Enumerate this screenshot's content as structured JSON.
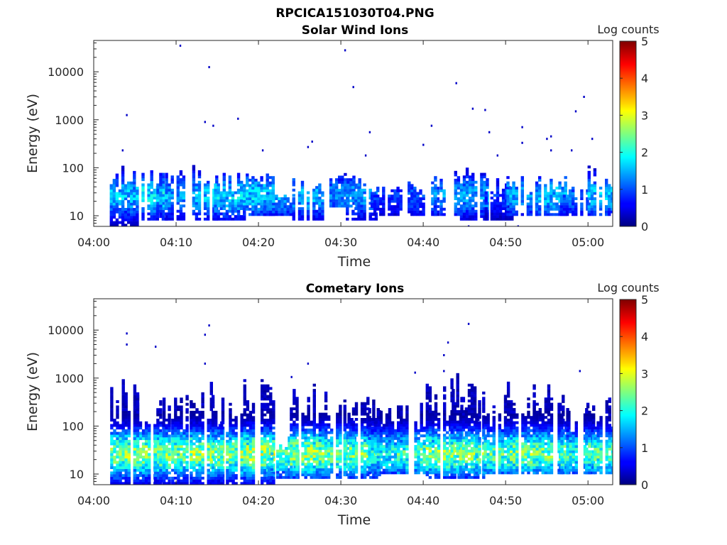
{
  "figure": {
    "title": "RPCICA151030T04.PNG"
  },
  "colorbar": {
    "label": "Log counts",
    "min": 0,
    "max": 5,
    "ticks": [
      "0",
      "1",
      "2",
      "3",
      "4",
      "5"
    ],
    "colormap": "jet"
  },
  "chart_data": [
    {
      "type": "heatmap",
      "title": "Solar Wind Ions",
      "xlabel": "Time",
      "ylabel": "Energy (eV)",
      "yscale": "log",
      "ylim": [
        6,
        45000
      ],
      "xlim": [
        "04:00",
        "05:03"
      ],
      "xticks": [
        "04:00",
        "04:10",
        "04:20",
        "04:30",
        "04:40",
        "04:50",
        "05:00"
      ],
      "yticks": [
        "10",
        "100",
        "1000",
        "10000"
      ],
      "grid": false,
      "bursts": [
        {
          "t": "04:03.5",
          "emin": 6,
          "emax": 110,
          "peak": 1.8
        },
        {
          "t": "04:07.0",
          "emin": 8,
          "emax": 90,
          "peak": 2.0
        },
        {
          "t": "04:09.5",
          "emin": 8,
          "emax": 90,
          "peak": 1.6
        },
        {
          "t": "04:13.5",
          "emin": 8,
          "emax": 110,
          "peak": 1.8
        },
        {
          "t": "04:16.5",
          "emin": 8,
          "emax": 80,
          "peak": 1.9
        },
        {
          "t": "04:20.0",
          "emin": 10,
          "emax": 80,
          "peak": 1.9
        },
        {
          "t": "04:22.5",
          "emin": 10,
          "emax": 30,
          "peak": 1.7
        },
        {
          "t": "04:26.0",
          "emin": 8,
          "emax": 60,
          "peak": 1.7
        },
        {
          "t": "04:30.5",
          "emin": 15,
          "emax": 80,
          "peak": 1.5
        },
        {
          "t": "04:32.5",
          "emin": 8,
          "emax": 60,
          "peak": 1.6
        },
        {
          "t": "04:35.5",
          "emin": 10,
          "emax": 40,
          "peak": 1.0
        },
        {
          "t": "04:40.0",
          "emin": 10,
          "emax": 50,
          "peak": 1.2
        },
        {
          "t": "04:42.5",
          "emin": 10,
          "emax": 110,
          "peak": 1.6
        },
        {
          "t": "04:46.0",
          "emin": 8,
          "emax": 120,
          "peak": 1.6
        },
        {
          "t": "04:49.0",
          "emin": 8,
          "emax": 60,
          "peak": 1.0
        },
        {
          "t": "04:52.0",
          "emin": 10,
          "emax": 70,
          "peak": 1.6
        },
        {
          "t": "04:55.5",
          "emin": 10,
          "emax": 60,
          "peak": 1.8
        },
        {
          "t": "04:58.5",
          "emin": 10,
          "emax": 45,
          "peak": 1.3
        },
        {
          "t": "05:01.5",
          "emin": 10,
          "emax": 100,
          "peak": 1.8
        }
      ],
      "sparse_points": [
        {
          "t": "04:10.5",
          "e": 35000
        },
        {
          "t": "04:14.0",
          "e": 12500
        },
        {
          "t": "04:30.5",
          "e": 28000
        },
        {
          "t": "04:31.5",
          "e": 4800
        },
        {
          "t": "04:44.0",
          "e": 5800
        },
        {
          "t": "04:46.0",
          "e": 1700
        },
        {
          "t": "04:47.5",
          "e": 1600
        },
        {
          "t": "04:58.5",
          "e": 1500
        },
        {
          "t": "04:59.5",
          "e": 3000
        },
        {
          "t": "04:04.0",
          "e": 1250
        },
        {
          "t": "04:17.5",
          "e": 1050
        },
        {
          "t": "04:13.5",
          "e": 900
        },
        {
          "t": "04:14.5",
          "e": 750
        },
        {
          "t": "04:41.0",
          "e": 750
        },
        {
          "t": "04:52.0",
          "e": 700
        },
        {
          "t": "04:33.5",
          "e": 550
        },
        {
          "t": "04:48.0",
          "e": 550
        },
        {
          "t": "04:55.5",
          "e": 450
        },
        {
          "t": "04:55.0",
          "e": 400
        },
        {
          "t": "05:00.5",
          "e": 400
        },
        {
          "t": "04:26.5",
          "e": 350
        },
        {
          "t": "04:52.0",
          "e": 330
        },
        {
          "t": "04:40.0",
          "e": 300
        },
        {
          "t": "04:26.0",
          "e": 270
        },
        {
          "t": "04:55.5",
          "e": 230
        },
        {
          "t": "04:58.0",
          "e": 230
        },
        {
          "t": "04:20.5",
          "e": 230
        },
        {
          "t": "04:03.5",
          "e": 230
        },
        {
          "t": "04:49.0",
          "e": 180
        },
        {
          "t": "04:33.0",
          "e": 180
        },
        {
          "t": "04:45.5",
          "e": 6
        },
        {
          "t": "04:51.5",
          "e": 6
        }
      ]
    },
    {
      "type": "heatmap",
      "title": "Cometary Ions",
      "xlabel": "Time",
      "ylabel": "Energy (eV)",
      "yscale": "log",
      "ylim": [
        6,
        45000
      ],
      "xlim": [
        "04:00",
        "05:03"
      ],
      "xticks": [
        "04:00",
        "04:10",
        "04:20",
        "04:30",
        "04:40",
        "04:50",
        "05:00"
      ],
      "yticks": [
        "10",
        "100",
        "1000",
        "10000"
      ],
      "grid": false,
      "bursts": [
        {
          "t": "04:03.5",
          "emin": 6,
          "emax": 900,
          "peak": 2.9
        },
        {
          "t": "04:07.0",
          "emin": 6,
          "emax": 500,
          "peak": 2.9
        },
        {
          "t": "04:09.5",
          "emin": 6,
          "emax": 500,
          "peak": 2.8
        },
        {
          "t": "04:13.5",
          "emin": 6,
          "emax": 1000,
          "peak": 3.0
        },
        {
          "t": "04:16.5",
          "emin": 6,
          "emax": 500,
          "peak": 2.8
        },
        {
          "t": "04:20.0",
          "emin": 6,
          "emax": 1200,
          "peak": 3.1
        },
        {
          "t": "04:23.0",
          "emin": 8,
          "emax": 60,
          "peak": 2.6
        },
        {
          "t": "04:26.0",
          "emin": 8,
          "emax": 800,
          "peak": 3.0
        },
        {
          "t": "04:29.5",
          "emin": 8,
          "emax": 400,
          "peak": 2.8
        },
        {
          "t": "04:32.5",
          "emin": 8,
          "emax": 600,
          "peak": 2.8
        },
        {
          "t": "04:35.5",
          "emin": 10,
          "emax": 300,
          "peak": 2.2
        },
        {
          "t": "04:39.0",
          "emin": 10,
          "emax": 400,
          "peak": 2.6
        },
        {
          "t": "04:42.5",
          "emin": 8,
          "emax": 900,
          "peak": 2.9
        },
        {
          "t": "04:45.5",
          "emin": 8,
          "emax": 1300,
          "peak": 2.8
        },
        {
          "t": "04:48.5",
          "emin": 10,
          "emax": 400,
          "peak": 2.6
        },
        {
          "t": "04:52.0",
          "emin": 10,
          "emax": 900,
          "peak": 2.8
        },
        {
          "t": "04:55.5",
          "emin": 10,
          "emax": 800,
          "peak": 2.8
        },
        {
          "t": "04:58.5",
          "emin": 10,
          "emax": 300,
          "peak": 2.3
        },
        {
          "t": "05:01.5",
          "emin": 10,
          "emax": 400,
          "peak": 2.6
        }
      ],
      "sparse_points": [
        {
          "t": "04:04.0",
          "e": 8500
        },
        {
          "t": "04:04.0",
          "e": 5000
        },
        {
          "t": "04:07.5",
          "e": 4500
        },
        {
          "t": "04:13.5",
          "e": 8000
        },
        {
          "t": "04:14.0",
          "e": 12500
        },
        {
          "t": "04:45.5",
          "e": 13500
        },
        {
          "t": "04:43.0",
          "e": 5500
        },
        {
          "t": "04:42.5",
          "e": 3000
        },
        {
          "t": "04:13.5",
          "e": 2000
        },
        {
          "t": "04:26.0",
          "e": 2000
        },
        {
          "t": "04:42.5",
          "e": 1400
        },
        {
          "t": "04:39.0",
          "e": 1300
        },
        {
          "t": "04:59.0",
          "e": 1400
        },
        {
          "t": "04:24.0",
          "e": 1050
        }
      ]
    }
  ]
}
